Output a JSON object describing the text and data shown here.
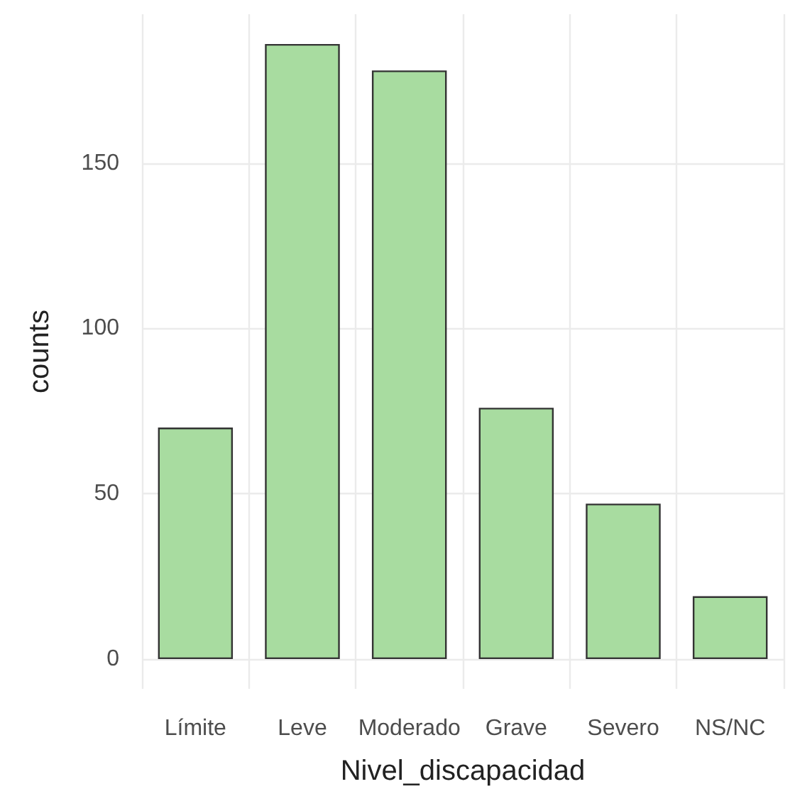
{
  "chart_data": {
    "type": "bar",
    "xlabel": "Nivel_discapacidad",
    "ylabel": "counts",
    "categories": [
      "Límite",
      "Leve",
      "Moderado",
      "Grave",
      "Severo",
      "NS/NC"
    ],
    "values": [
      70,
      186,
      178,
      76,
      47,
      19
    ],
    "color": "#a8dca0",
    "ylim": [
      -9,
      195
    ],
    "yticks": [
      0,
      50,
      100,
      150
    ],
    "grid": true
  }
}
